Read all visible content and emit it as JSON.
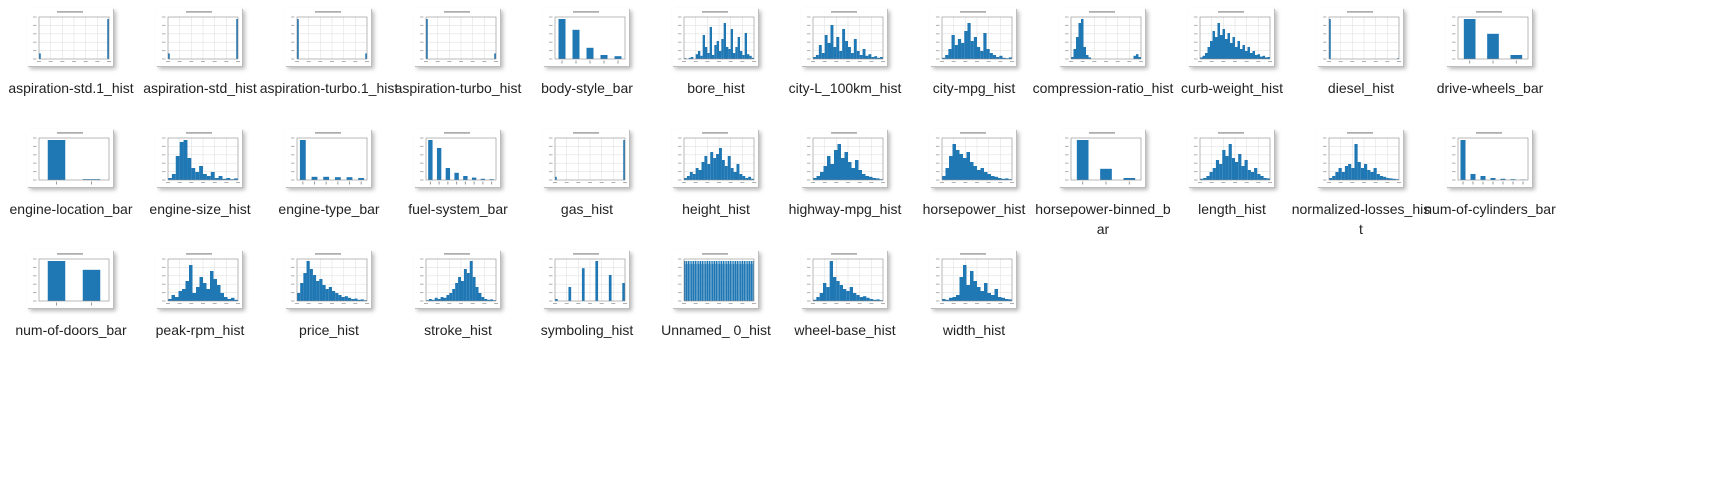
{
  "window": {
    "view": "large-icons",
    "file_type": "png-image"
  },
  "colors": {
    "bar": "#1f77b4",
    "grid": "#e2e2e2",
    "axis": "#8a8a8a",
    "label_text": "#222222"
  },
  "files": [
    {
      "label": "aspiration-std.1_hist",
      "icon": "histogram-thumbnail",
      "kind": "hist",
      "bars": [
        0.14,
        0,
        0,
        0,
        0,
        0,
        0,
        0,
        0,
        0,
        0,
        0,
        0,
        0,
        0,
        0,
        0,
        0,
        0,
        0,
        0,
        0,
        0,
        0,
        0,
        0,
        0,
        0,
        0,
        0,
        0,
        0,
        0,
        0,
        0,
        0,
        0,
        0,
        0,
        1.0
      ]
    },
    {
      "label": "aspiration-std_hist",
      "icon": "histogram-thumbnail",
      "kind": "hist",
      "bars": [
        0.14,
        0,
        0,
        0,
        0,
        0,
        0,
        0,
        0,
        0,
        0,
        0,
        0,
        0,
        0,
        0,
        0,
        0,
        0,
        0,
        0,
        0,
        0,
        0,
        0,
        0,
        0,
        0,
        0,
        0,
        0,
        0,
        0,
        0,
        0,
        0,
        0,
        0,
        0,
        1.0
      ]
    },
    {
      "label": "aspiration-turbo.1_hist",
      "icon": "histogram-thumbnail",
      "kind": "hist",
      "bars": [
        1.0,
        0,
        0,
        0,
        0,
        0,
        0,
        0,
        0,
        0,
        0,
        0,
        0,
        0,
        0,
        0,
        0,
        0,
        0,
        0,
        0,
        0,
        0,
        0,
        0,
        0,
        0,
        0,
        0,
        0,
        0,
        0,
        0,
        0,
        0,
        0,
        0,
        0,
        0,
        0.14
      ]
    },
    {
      "label": "aspiration-turbo_hist",
      "icon": "histogram-thumbnail",
      "kind": "hist",
      "bars": [
        1.0,
        0,
        0,
        0,
        0,
        0,
        0,
        0,
        0,
        0,
        0,
        0,
        0,
        0,
        0,
        0,
        0,
        0,
        0,
        0,
        0,
        0,
        0,
        0,
        0,
        0,
        0,
        0,
        0,
        0,
        0,
        0,
        0,
        0,
        0,
        0,
        0,
        0,
        0,
        0.14
      ]
    },
    {
      "label": "body-style_bar",
      "icon": "bar-chart-thumbnail",
      "kind": "bar",
      "bars": [
        1.0,
        0.73,
        0.28,
        0.1,
        0.07
      ]
    },
    {
      "label": "bore_hist",
      "icon": "histogram-thumbnail",
      "kind": "hist",
      "bars": [
        0.02,
        0,
        0.03,
        0.05,
        0,
        0.12,
        0.2,
        0.08,
        0.6,
        0.3,
        0.15,
        0.8,
        0.1,
        0.35,
        0.45,
        0.2,
        0.5,
        0.9,
        0.3,
        0.25,
        0.75,
        0.15,
        0.3,
        0.55,
        0.2,
        0.1,
        0.65,
        0.12,
        0.08,
        0.03
      ]
    },
    {
      "label": "city-L_100km_hist",
      "icon": "histogram-thumbnail",
      "kind": "hist",
      "bars": [
        0.05,
        0.1,
        0.35,
        0.15,
        0.6,
        0.4,
        0.85,
        0.3,
        0.55,
        0.2,
        0.75,
        0.45,
        0.3,
        0.15,
        0.5,
        0.2,
        0.1,
        0.25,
        0.08,
        0.12,
        0.05,
        0.07,
        0.03,
        0.05
      ]
    },
    {
      "label": "city-mpg_hist",
      "icon": "histogram-thumbnail",
      "kind": "hist",
      "bars": [
        0.03,
        0.1,
        0.25,
        0.6,
        0.35,
        0.5,
        0.4,
        0.7,
        0.9,
        0.45,
        0.55,
        0.3,
        0.2,
        0.65,
        0.25,
        0.15,
        0.1,
        0.05,
        0.08,
        0.03,
        0.02,
        0.04
      ]
    },
    {
      "label": "compression-ratio_hist",
      "icon": "histogram-thumbnail",
      "kind": "hist",
      "bars": [
        0.05,
        0.25,
        0.55,
        0.9,
        1.0,
        0.3,
        0.1,
        0.04,
        0,
        0,
        0,
        0,
        0,
        0,
        0,
        0,
        0,
        0,
        0,
        0,
        0,
        0,
        0,
        0,
        0,
        0.08,
        0.12,
        0.05
      ]
    },
    {
      "label": "curb-weight_hist",
      "icon": "histogram-thumbnail",
      "kind": "hist",
      "bars": [
        0.04,
        0.08,
        0.15,
        0.3,
        0.45,
        0.7,
        0.55,
        0.9,
        0.6,
        0.75,
        0.5,
        0.65,
        0.4,
        0.55,
        0.3,
        0.45,
        0.25,
        0.35,
        0.2,
        0.3,
        0.15,
        0.2,
        0.1,
        0.12,
        0.06,
        0.08,
        0.04,
        0.05
      ]
    },
    {
      "label": "diesel_hist",
      "icon": "histogram-thumbnail",
      "kind": "hist",
      "bars": [
        1.0,
        0,
        0,
        0,
        0,
        0,
        0,
        0,
        0,
        0,
        0,
        0,
        0,
        0,
        0,
        0,
        0,
        0,
        0,
        0,
        0,
        0,
        0,
        0,
        0,
        0,
        0,
        0,
        0,
        0,
        0,
        0,
        0,
        0,
        0,
        0,
        0,
        0,
        0,
        0.02
      ]
    },
    {
      "label": "drive-wheels_bar",
      "icon": "bar-chart-thumbnail",
      "kind": "bar",
      "bars": [
        1.0,
        0.63,
        0.1
      ]
    },
    {
      "label": "engine-location_bar",
      "icon": "bar-chart-thumbnail",
      "kind": "bar",
      "bars": [
        1.0,
        0.02
      ]
    },
    {
      "label": "engine-size_hist",
      "icon": "histogram-thumbnail",
      "kind": "hist",
      "bars": [
        0.05,
        0.15,
        0.6,
        0.95,
        1.0,
        0.55,
        0.3,
        0.2,
        0.35,
        0.15,
        0.1,
        0.2,
        0.05,
        0.1,
        0.03,
        0.05,
        0.02,
        0.04
      ]
    },
    {
      "label": "engine-type_bar",
      "icon": "bar-chart-thumbnail",
      "kind": "bar",
      "bars": [
        1.0,
        0.08,
        0.08,
        0.07,
        0.07,
        0.05
      ]
    },
    {
      "label": "fuel-system_bar",
      "icon": "bar-chart-thumbnail",
      "kind": "bar",
      "bars": [
        1.0,
        0.8,
        0.3,
        0.18,
        0.1,
        0.06,
        0.03,
        0.02
      ]
    },
    {
      "label": "gas_hist",
      "icon": "histogram-thumbnail",
      "kind": "hist",
      "bars": [
        0.08,
        0,
        0,
        0,
        0,
        0,
        0,
        0,
        0,
        0,
        0,
        0,
        0,
        0,
        0,
        0,
        0,
        0,
        0,
        0,
        0,
        0,
        0,
        0,
        0,
        0,
        0,
        0,
        0,
        0,
        0,
        0,
        0,
        0,
        0,
        0,
        0,
        0,
        0,
        1.0
      ]
    },
    {
      "label": "height_hist",
      "icon": "histogram-thumbnail",
      "kind": "hist",
      "bars": [
        0.05,
        0.1,
        0.2,
        0.15,
        0.3,
        0.25,
        0.45,
        0.6,
        0.4,
        0.7,
        0.55,
        0.65,
        0.8,
        0.5,
        0.35,
        0.6,
        0.3,
        0.2,
        0.4,
        0.15,
        0.1,
        0.05,
        0.08,
        0.03
      ]
    },
    {
      "label": "highway-mpg_hist",
      "icon": "histogram-thumbnail",
      "kind": "hist",
      "bars": [
        0.05,
        0.1,
        0.2,
        0.35,
        0.6,
        0.4,
        0.75,
        0.9,
        0.55,
        0.7,
        0.45,
        0.3,
        0.5,
        0.25,
        0.15,
        0.1,
        0.08,
        0.05,
        0.04,
        0.02
      ]
    },
    {
      "label": "horsepower_hist",
      "icon": "histogram-thumbnail",
      "kind": "hist",
      "bars": [
        0.1,
        0.3,
        0.6,
        0.9,
        0.75,
        0.65,
        0.55,
        0.7,
        0.45,
        0.35,
        0.25,
        0.3,
        0.2,
        0.15,
        0.1,
        0.08,
        0.05,
        0.03,
        0.04,
        0.02
      ]
    },
    {
      "label": "horsepower-binned_bar",
      "icon": "bar-chart-thumbnail",
      "kind": "bar",
      "bars": [
        1.0,
        0.28,
        0.05
      ]
    },
    {
      "label": "length_hist",
      "icon": "histogram-thumbnail",
      "kind": "hist",
      "bars": [
        0.03,
        0.05,
        0.1,
        0.2,
        0.3,
        0.5,
        0.4,
        0.75,
        0.6,
        0.9,
        0.55,
        0.45,
        0.65,
        0.35,
        0.5,
        0.25,
        0.2,
        0.3,
        0.15,
        0.1,
        0.05,
        0.04
      ]
    },
    {
      "label": "normalized-losses_hist",
      "icon": "histogram-thumbnail",
      "kind": "hist",
      "bars": [
        0.05,
        0.1,
        0.2,
        0.3,
        0.2,
        0.35,
        0.4,
        0.3,
        0.9,
        0.45,
        0.3,
        0.4,
        0.25,
        0.2,
        0.3,
        0.15,
        0.1,
        0.08,
        0.05,
        0.04,
        0.03,
        0.02
      ]
    },
    {
      "label": "num-of-cylinders_bar",
      "icon": "bar-chart-thumbnail",
      "kind": "bar",
      "bars": [
        1.0,
        0.15,
        0.1,
        0.05,
        0.03,
        0.02,
        0.01
      ]
    },
    {
      "label": "num-of-doors_bar",
      "icon": "bar-chart-thumbnail",
      "kind": "bar",
      "bars": [
        1.0,
        0.78
      ]
    },
    {
      "label": "peak-rpm_hist",
      "icon": "histogram-thumbnail",
      "kind": "hist",
      "bars": [
        0.05,
        0.15,
        0.1,
        0.25,
        0.3,
        0.5,
        0.9,
        0.2,
        0.35,
        0.6,
        0.45,
        0.3,
        0.75,
        0.55,
        0.4,
        0.2,
        0.1,
        0.05,
        0.08,
        0.03
      ]
    },
    {
      "label": "price_hist",
      "icon": "histogram-thumbnail",
      "kind": "hist",
      "bars": [
        0.2,
        0.45,
        0.7,
        1.0,
        0.8,
        0.65,
        0.5,
        0.55,
        0.4,
        0.3,
        0.35,
        0.25,
        0.2,
        0.15,
        0.1,
        0.12,
        0.08,
        0.05,
        0.06,
        0.03,
        0.04,
        0.02
      ]
    },
    {
      "label": "stroke_hist",
      "icon": "histogram-thumbnail",
      "kind": "hist",
      "bars": [
        0.02,
        0.05,
        0.03,
        0.08,
        0.05,
        0.1,
        0.08,
        0.15,
        0.2,
        0.3,
        0.45,
        0.6,
        0.5,
        0.8,
        0.7,
        1.0,
        0.6,
        0.35,
        0.2,
        0.1,
        0.05,
        0.03,
        0.04,
        0.02
      ]
    },
    {
      "label": "symboling_hist",
      "icon": "histogram-thumbnail",
      "kind": "hist",
      "bars": [
        0.05,
        0,
        0,
        0,
        0,
        0.35,
        0,
        0,
        0,
        0,
        0.82,
        0,
        0,
        0,
        0,
        1.0,
        0,
        0,
        0,
        0,
        0.65,
        0,
        0,
        0,
        0,
        0.45
      ]
    },
    {
      "label": "Unnamed_ 0_hist",
      "icon": "histogram-thumbnail",
      "kind": "hist",
      "bars": [
        1,
        1,
        1,
        1,
        1,
        1,
        1,
        1,
        1,
        1,
        1,
        1,
        1,
        1,
        1,
        1,
        1,
        1,
        1,
        1,
        1,
        1,
        1,
        1,
        1,
        1,
        1,
        1,
        1,
        1,
        1,
        1,
        1,
        1,
        1,
        1,
        1,
        1,
        1,
        1
      ],
      "notches": true
    },
    {
      "label": "wheel-base_hist",
      "icon": "histogram-thumbnail",
      "kind": "hist",
      "bars": [
        0.03,
        0.1,
        0.2,
        0.45,
        0.35,
        1.0,
        0.6,
        0.5,
        0.4,
        0.3,
        0.25,
        0.35,
        0.2,
        0.15,
        0.1,
        0.12,
        0.08,
        0.05,
        0.03,
        0.04,
        0.02
      ]
    },
    {
      "label": "width_hist",
      "icon": "histogram-thumbnail",
      "kind": "hist",
      "bars": [
        0.05,
        0.03,
        0.08,
        0.1,
        0.15,
        0.6,
        0.9,
        0.4,
        0.75,
        0.5,
        0.35,
        0.25,
        0.45,
        0.2,
        0.15,
        0.3,
        0.1,
        0.08,
        0.05,
        0.04
      ]
    }
  ]
}
